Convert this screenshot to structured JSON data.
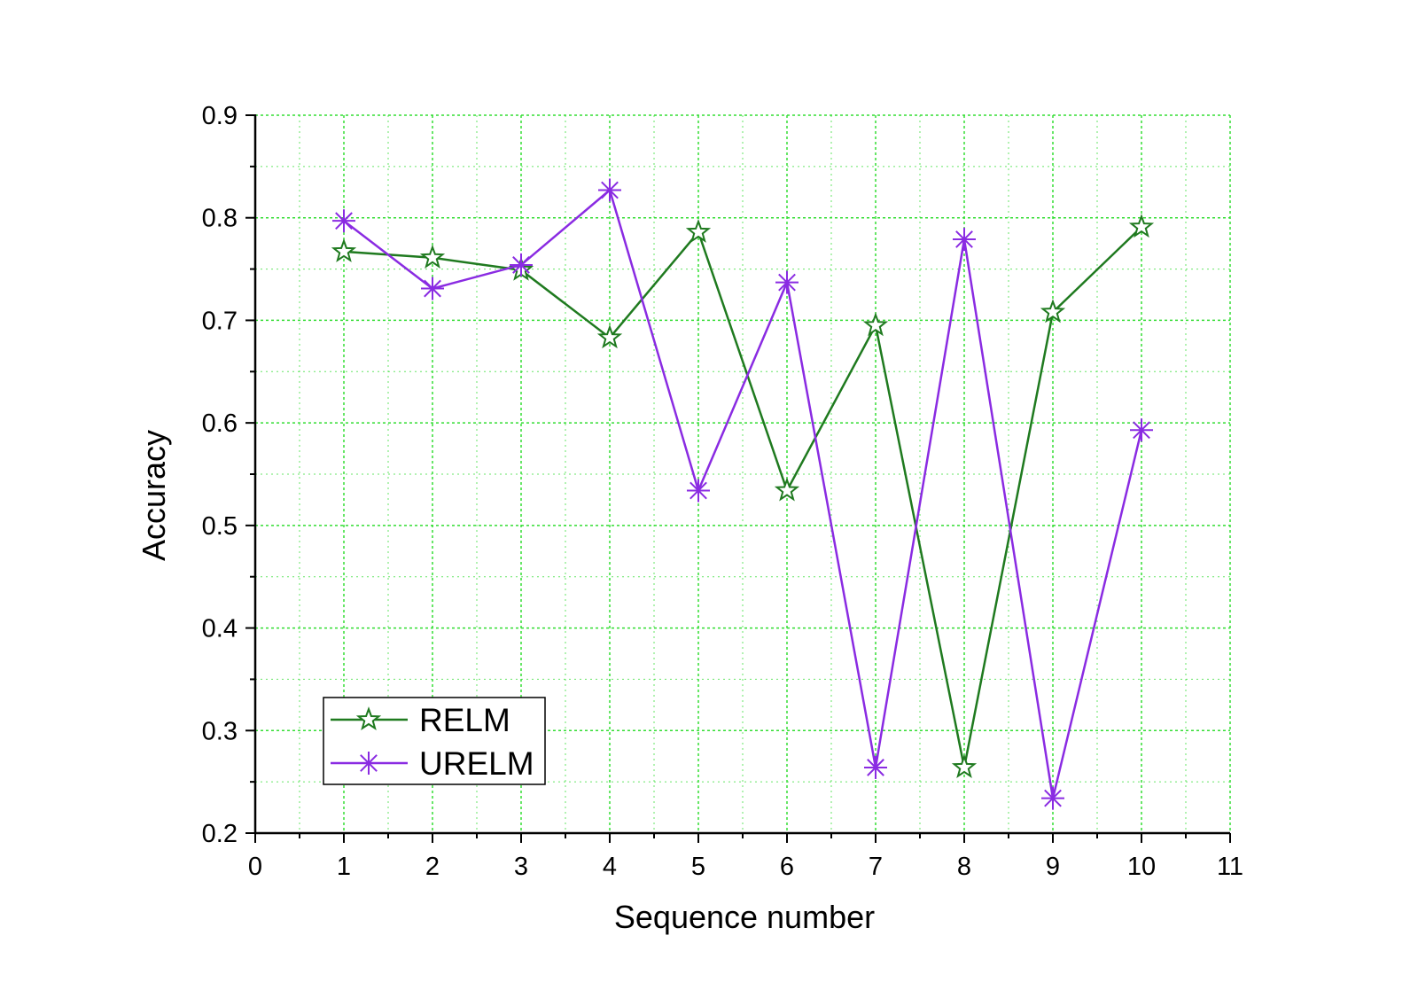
{
  "chart_data": {
    "type": "line",
    "title": "",
    "xlabel": "Sequence number",
    "ylabel": "Accuracy",
    "xlim": [
      0,
      11
    ],
    "ylim": [
      0.2,
      0.9
    ],
    "xticks": [
      0,
      1,
      2,
      3,
      4,
      5,
      6,
      7,
      8,
      9,
      10,
      11
    ],
    "yticks": [
      0.2,
      0.3,
      0.4,
      0.5,
      0.6,
      0.7,
      0.8,
      0.9
    ],
    "grid": true,
    "grid_color": "#33dd33",
    "legend_position": "bottom-left",
    "x": [
      1,
      2,
      3,
      4,
      5,
      6,
      7,
      8,
      9,
      10
    ],
    "series": [
      {
        "name": "RELM",
        "color": "#1f7a1f",
        "marker": "star",
        "values": [
          0.767,
          0.761,
          0.749,
          0.683,
          0.786,
          0.534,
          0.695,
          0.264,
          0.708,
          0.791
        ]
      },
      {
        "name": "URELM",
        "color": "#8a2be2",
        "marker": "asterisk",
        "values": [
          0.797,
          0.731,
          0.754,
          0.827,
          0.534,
          0.737,
          0.264,
          0.779,
          0.234,
          0.593
        ]
      }
    ]
  }
}
